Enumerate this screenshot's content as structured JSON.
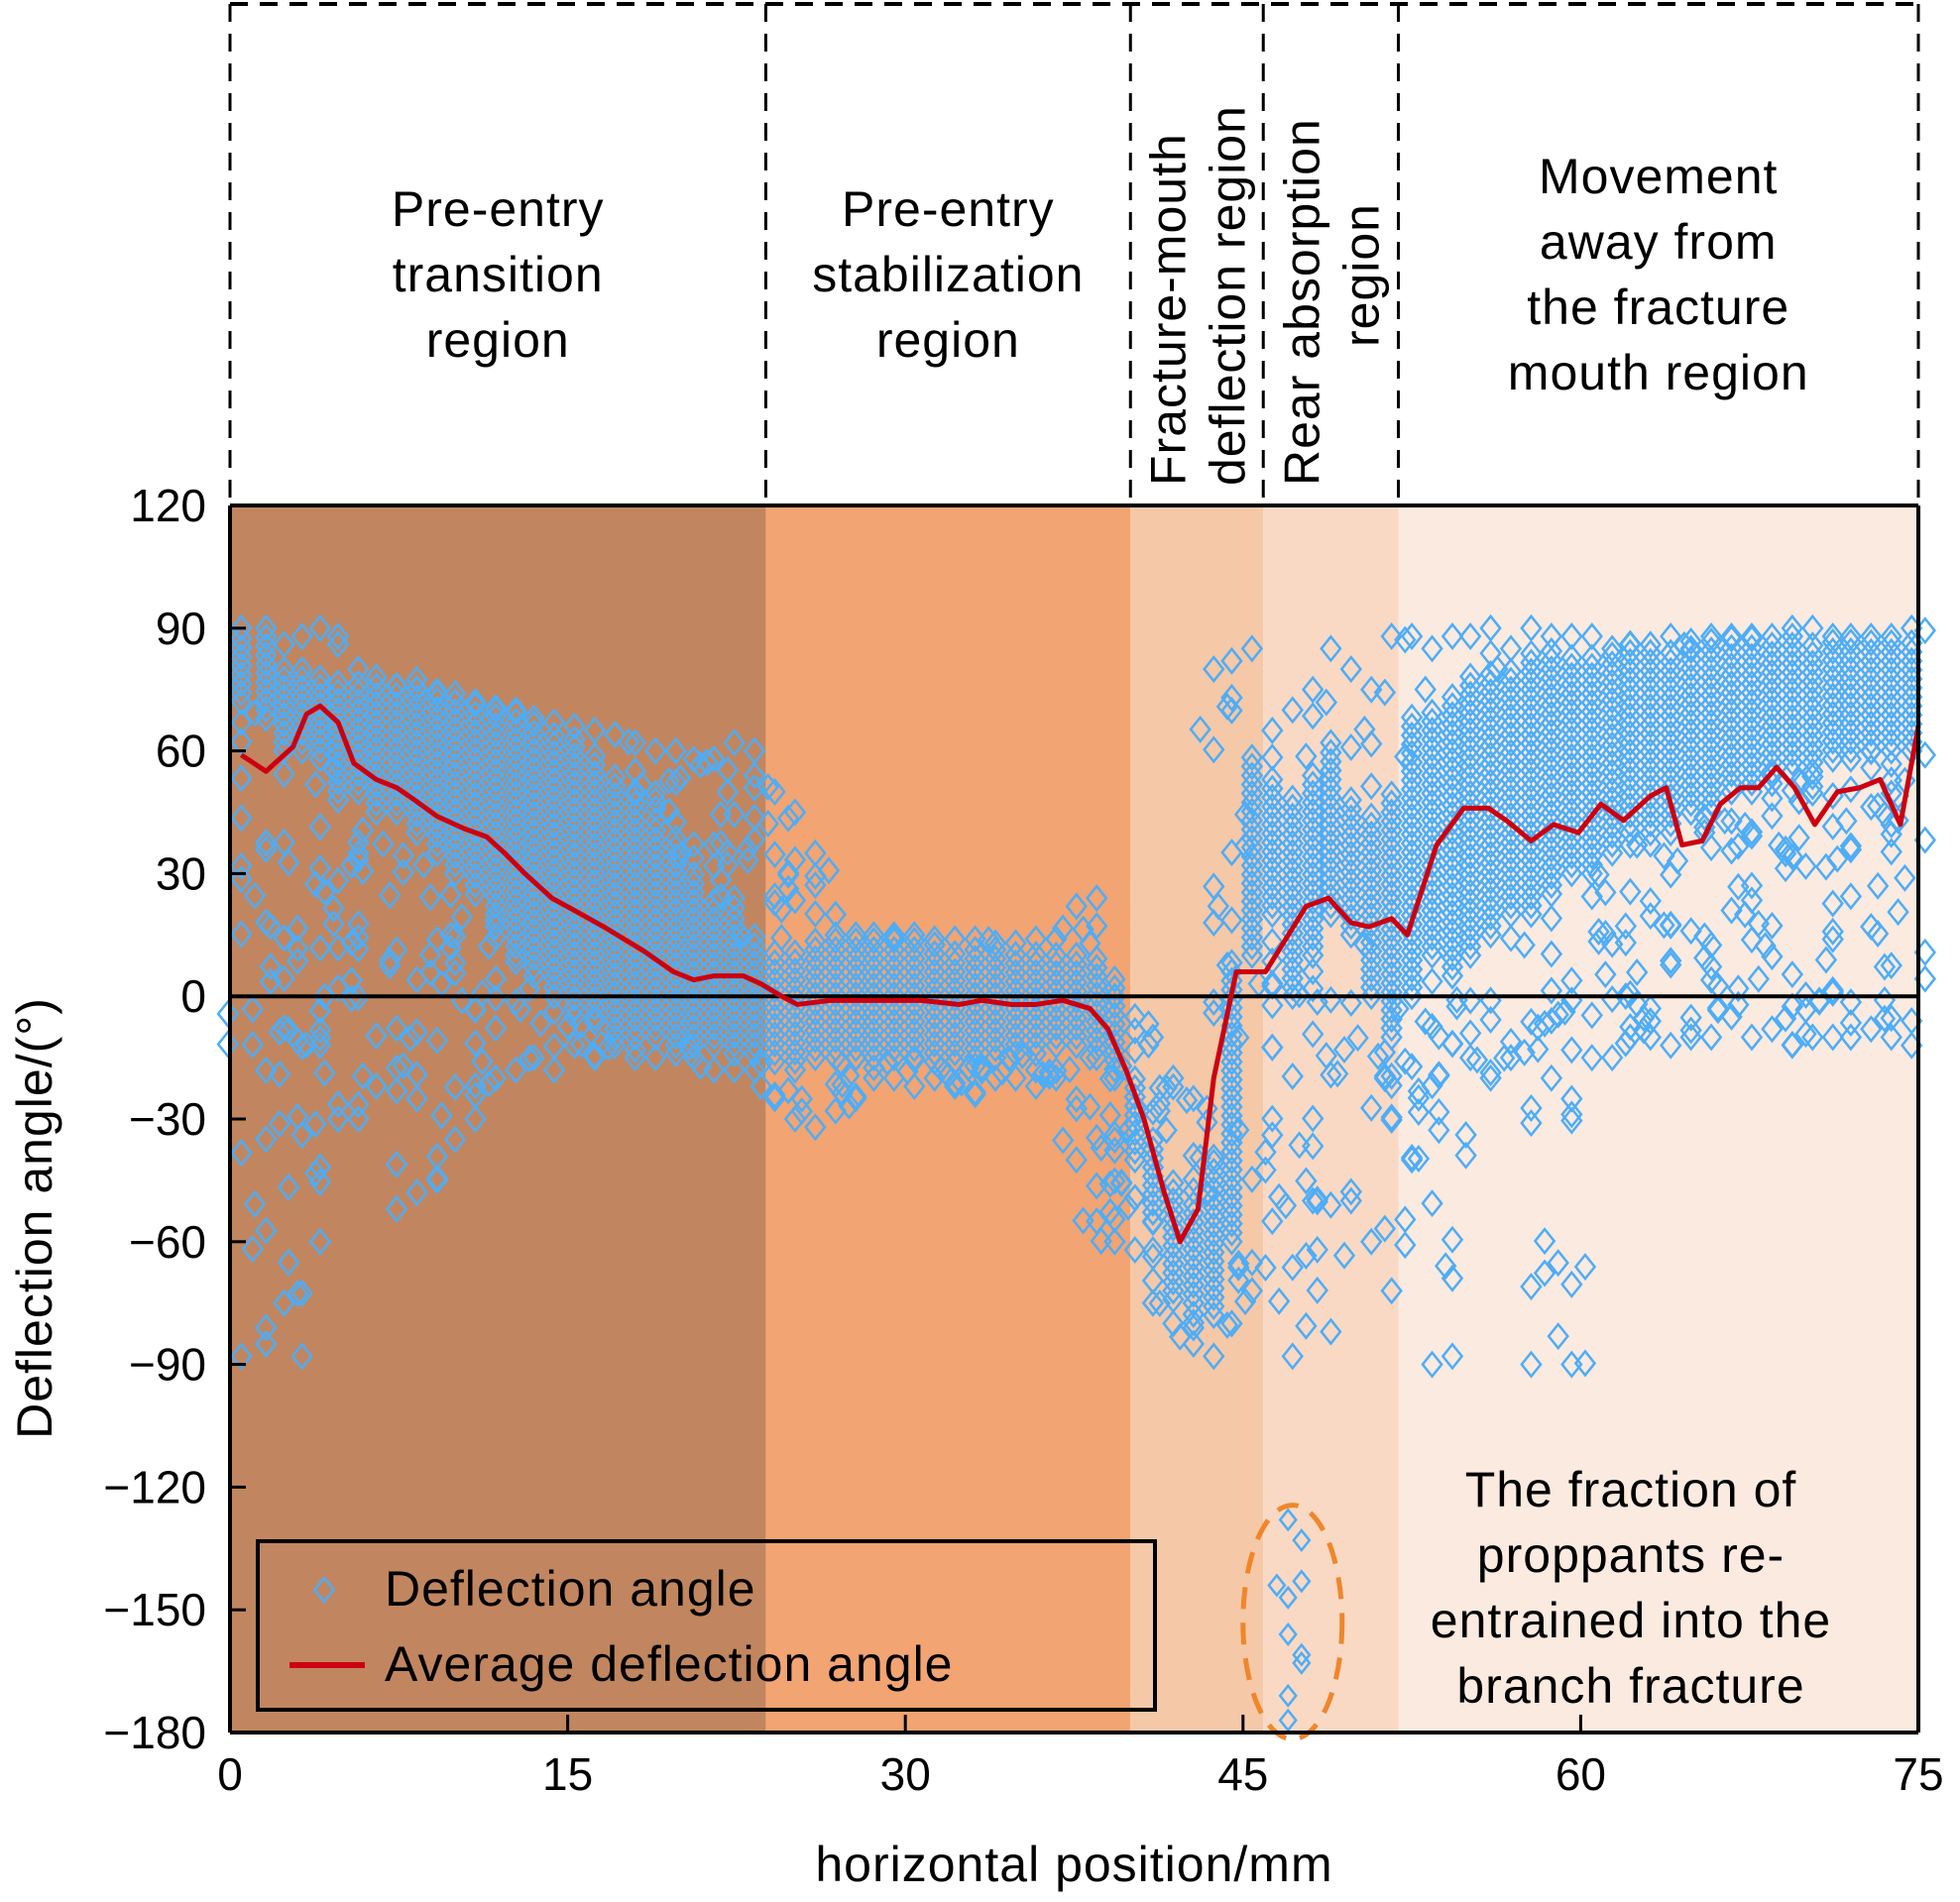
{
  "chart_data": {
    "type": "scatter",
    "title": "",
    "xlabel": "horizontal position/mm",
    "ylabel": "Deflection angle/(°)",
    "xlim": [
      0,
      75
    ],
    "ylim": [
      -180,
      120
    ],
    "x_ticks": [
      0,
      15,
      30,
      45,
      60,
      75
    ],
    "y_ticks": [
      120,
      90,
      60,
      30,
      0,
      -30,
      -60,
      -90,
      -120,
      -150,
      -180
    ],
    "grid": false,
    "zero_line": true,
    "legend": {
      "placement": "bottom-left",
      "entries": [
        {
          "label": "Deflection angle",
          "marker": "diamond-open",
          "color": "#4DADF7"
        },
        {
          "label": "Average deflection angle",
          "marker": "line",
          "color": "#CC0011"
        }
      ]
    },
    "regions": [
      {
        "label_lines": [
          "Pre-entry",
          "transition",
          "region"
        ],
        "x_start": 0,
        "x_end": 23.8,
        "color": "#C1865F",
        "label_orientation": "horizontal"
      },
      {
        "label_lines": [
          "Pre-entry",
          "stabilization",
          "region"
        ],
        "x_start": 23.8,
        "x_end": 40.0,
        "color": "#F2A472",
        "label_orientation": "horizontal"
      },
      {
        "label_lines": [
          "Fracture-mouth",
          "deflection region"
        ],
        "x_start": 40.0,
        "x_end": 45.9,
        "color": "#F5C8A7",
        "label_orientation": "vertical"
      },
      {
        "label_lines": [
          "Rear absorption",
          "region"
        ],
        "x_start": 45.9,
        "x_end": 51.9,
        "color": "#F9D9C4",
        "label_orientation": "vertical"
      },
      {
        "label_lines": [
          "Movement",
          "away from",
          "the fracture",
          "mouth region"
        ],
        "x_start": 51.9,
        "x_end": 75,
        "color": "#FBEADF",
        "label_orientation": "horizontal"
      }
    ],
    "series": [
      {
        "name": "Average deflection angle",
        "type": "line",
        "color": "#CC0011",
        "x": [
          0.5,
          1.6,
          2.8,
          3.4,
          4.0,
          4.8,
          5.5,
          6.5,
          7.4,
          8.2,
          9.2,
          10.4,
          11.4,
          12.2,
          13.1,
          14.3,
          15.3,
          16.6,
          18.4,
          19.7,
          20.6,
          21.5,
          22.8,
          23.6,
          24.5,
          25.2,
          26.7,
          28.5,
          30.7,
          32.4,
          33.4,
          34.7,
          35.8,
          37.0,
          38.2,
          39.0,
          39.8,
          40.6,
          41.5,
          42.2,
          43.0,
          43.7,
          44.7,
          46.0,
          47.8,
          48.8,
          49.8,
          50.6,
          51.6,
          52.3,
          53.6,
          54.8,
          55.9,
          56.7,
          57.8,
          58.8,
          59.9,
          60.9,
          61.9,
          63.1,
          63.8,
          64.5,
          65.4,
          66.2,
          67.1,
          67.9,
          68.7,
          69.5,
          70.4,
          71.4,
          72.4,
          73.3,
          74.2,
          75.0
        ],
        "y": [
          59,
          55,
          61,
          69,
          71,
          67,
          57,
          53,
          51,
          48,
          44,
          41,
          39,
          35,
          30,
          24,
          21,
          17,
          11,
          6,
          4,
          5,
          5,
          3,
          0,
          -2,
          -1,
          -1,
          -1,
          -2,
          -1,
          -2,
          -2,
          -1,
          -3,
          -8,
          -18,
          -30,
          -48,
          -60,
          -52,
          -20,
          6,
          6,
          22,
          24,
          18,
          17,
          19,
          15,
          37,
          46,
          46,
          43,
          38,
          42,
          40,
          47,
          43,
          49,
          51,
          37,
          38,
          47,
          51,
          51,
          56,
          51,
          42,
          50,
          51,
          53,
          42,
          66
        ]
      },
      {
        "name": "Deflection angle",
        "type": "scatter",
        "marker": "diamond-open",
        "color": "#4DADF7",
        "description": "Per-column clouds of individual particle deflection angles; each column lists [x, dense_min, dense_max, sparse_min, sparse_max]",
        "columns": [
          [
            0.5,
            72,
            88,
            -88,
            90
          ],
          [
            1.6,
            68,
            88,
            -85,
            90
          ],
          [
            2.4,
            60,
            82,
            -75,
            86
          ],
          [
            3.2,
            60,
            80,
            -88,
            88
          ],
          [
            4.0,
            58,
            80,
            -60,
            90
          ],
          [
            4.8,
            48,
            78,
            -30,
            88
          ],
          [
            5.7,
            50,
            78,
            -30,
            80
          ],
          [
            6.5,
            45,
            78,
            -22,
            78
          ],
          [
            7.4,
            45,
            78,
            -52,
            76
          ],
          [
            8.3,
            40,
            78,
            -48,
            75
          ],
          [
            9.2,
            35,
            76,
            -45,
            74
          ],
          [
            10.0,
            30,
            75,
            -35,
            72
          ],
          [
            10.9,
            25,
            72,
            -30,
            72
          ],
          [
            11.8,
            20,
            72,
            -20,
            70
          ],
          [
            12.7,
            10,
            70,
            -18,
            70
          ],
          [
            13.5,
            5,
            68,
            -15,
            68
          ],
          [
            14.4,
            0,
            65,
            -18,
            67
          ],
          [
            15.3,
            -5,
            62,
            -12,
            66
          ],
          [
            16.2,
            -5,
            60,
            -15,
            65
          ],
          [
            17.1,
            -8,
            55,
            -12,
            64
          ],
          [
            18.0,
            -10,
            50,
            -15,
            62
          ],
          [
            18.9,
            -10,
            45,
            -15,
            60
          ],
          [
            19.8,
            -12,
            40,
            -14,
            60
          ],
          [
            20.6,
            -12,
            30,
            -15,
            58
          ],
          [
            21.5,
            -12,
            25,
            -18,
            58
          ],
          [
            22.4,
            -14,
            20,
            -18,
            62
          ],
          [
            23.3,
            -14,
            15,
            -18,
            60
          ],
          [
            24.2,
            -16,
            10,
            -25,
            50
          ],
          [
            25.1,
            -18,
            12,
            -30,
            45
          ],
          [
            26.0,
            -15,
            12,
            -32,
            35
          ],
          [
            26.9,
            -15,
            14,
            -28,
            20
          ],
          [
            27.8,
            -15,
            14,
            -25,
            15
          ],
          [
            28.6,
            -15,
            14,
            -20,
            15
          ],
          [
            29.5,
            -15,
            14,
            -20,
            15
          ],
          [
            30.4,
            -15,
            14,
            -22,
            15
          ],
          [
            31.3,
            -16,
            13,
            -20,
            14
          ],
          [
            32.2,
            -16,
            12,
            -22,
            14
          ],
          [
            33.1,
            -15,
            12,
            -24,
            14
          ],
          [
            34.0,
            -15,
            12,
            -20,
            13
          ],
          [
            34.9,
            -14,
            12,
            -20,
            13
          ],
          [
            35.8,
            -14,
            12,
            -22,
            14
          ],
          [
            36.7,
            -12,
            12,
            -20,
            14
          ],
          [
            37.6,
            -12,
            12,
            -40,
            22
          ],
          [
            38.5,
            -15,
            10,
            -55,
            24
          ],
          [
            39.3,
            -20,
            5,
            -60,
            0
          ],
          [
            40.2,
            -40,
            -20,
            -62,
            -5
          ],
          [
            41.0,
            -55,
            -35,
            -75,
            -10
          ],
          [
            41.9,
            -72,
            -45,
            -80,
            -20
          ],
          [
            42.8,
            -75,
            -50,
            -85,
            -25
          ],
          [
            43.7,
            -78,
            -40,
            -88,
            80
          ],
          [
            44.5,
            -60,
            10,
            -80,
            82
          ],
          [
            45.4,
            10,
            60,
            -72,
            85
          ],
          [
            46.3,
            20,
            55,
            -55,
            65
          ],
          [
            47.2,
            0,
            50,
            -88,
            70
          ],
          [
            48.1,
            10,
            55,
            -50,
            75
          ],
          [
            48.9,
            20,
            60,
            -82,
            85
          ],
          [
            49.8,
            15,
            50,
            -50,
            80
          ],
          [
            50.7,
            0,
            45,
            -60,
            75
          ],
          [
            51.6,
            -10,
            50,
            -72,
            88
          ],
          [
            52.5,
            0,
            70,
            -40,
            88
          ],
          [
            53.4,
            10,
            70,
            -90,
            85
          ],
          [
            54.3,
            5,
            75,
            -88,
            88
          ],
          [
            55.1,
            10,
            80,
            -15,
            88
          ],
          [
            56.0,
            15,
            80,
            -20,
            90
          ],
          [
            56.9,
            20,
            80,
            -15,
            85
          ],
          [
            57.8,
            20,
            85,
            -90,
            90
          ],
          [
            58.7,
            25,
            85,
            -20,
            88
          ],
          [
            59.6,
            30,
            85,
            -90,
            88
          ],
          [
            60.5,
            30,
            85,
            -15,
            88
          ],
          [
            61.4,
            35,
            85,
            -15,
            85
          ],
          [
            62.2,
            40,
            88,
            -10,
            86
          ],
          [
            63.1,
            40,
            85,
            -10,
            86
          ],
          [
            64.0,
            40,
            85,
            -12,
            88
          ],
          [
            64.9,
            45,
            88,
            -10,
            85
          ],
          [
            65.8,
            45,
            88,
            -10,
            88
          ],
          [
            66.7,
            50,
            88,
            -5,
            88
          ],
          [
            67.6,
            50,
            88,
            -10,
            88
          ],
          [
            68.5,
            55,
            88,
            -8,
            88
          ],
          [
            69.4,
            55,
            90,
            -12,
            90
          ],
          [
            70.3,
            55,
            88,
            -10,
            90
          ],
          [
            71.2,
            58,
            88,
            -10,
            88
          ],
          [
            72.0,
            58,
            88,
            -10,
            88
          ],
          [
            72.9,
            60,
            88,
            -8,
            88
          ],
          [
            73.8,
            60,
            88,
            -10,
            88
          ],
          [
            74.7,
            60,
            88,
            -12,
            90
          ]
        ],
        "highlighted_points": {
          "label": "re-entrained proppants",
          "points": [
            [
              47.0,
              -128
            ],
            [
              47.6,
              -133
            ],
            [
              46.5,
              -144
            ],
            [
              47.0,
              -147
            ],
            [
              47.6,
              -143
            ],
            [
              47.0,
              -156
            ],
            [
              47.6,
              -161
            ],
            [
              47.6,
              -163
            ],
            [
              47.0,
              -171
            ],
            [
              47.0,
              -177
            ]
          ]
        }
      }
    ],
    "annotations": [
      {
        "text_lines": [
          "The fraction of",
          "proppants re-",
          "entrained into the",
          "branch fracture"
        ],
        "target": "dashed ellipse around points at x≈47, y≈-125 to -180",
        "ellipse_color": "#F0862A"
      }
    ]
  }
}
